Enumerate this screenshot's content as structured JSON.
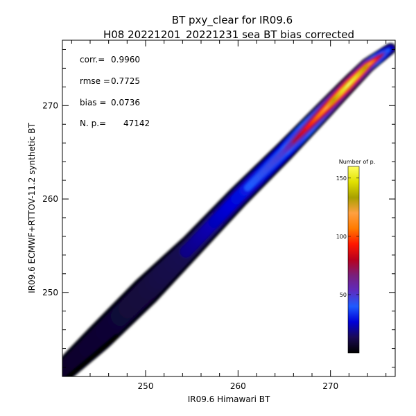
{
  "chart_data": {
    "type": "heatmap",
    "title": "BT pxy_clear for IR09.6",
    "subtitle": "H08 20221201_20221231 sea BT bias corrected",
    "xlabel": "IR09.6 Himawari BT",
    "ylabel": "IR09.6 ECMWF+RTTOV-11.2 synthetic BT",
    "xlim": [
      241,
      277
    ],
    "ylim": [
      241,
      277
    ],
    "x_ticks": [
      "250",
      "260",
      "270"
    ],
    "y_ticks": [
      "250",
      "260",
      "270"
    ],
    "stats": [
      {
        "label": "corr.=",
        "value": "0.9960"
      },
      {
        "label": "rmse =",
        "value": "0.7725"
      },
      {
        "label": "bias =",
        "value": "0.0736"
      },
      {
        "label": "N. p.=",
        "value": "47142"
      }
    ],
    "colorbar": {
      "title": "Number of p.",
      "range": [
        0,
        160
      ],
      "ticks": [
        "50",
        "100",
        "150"
      ],
      "tick_values": [
        50,
        100,
        150
      ],
      "colors": [
        "#000000",
        "#1a0a55",
        "#0000d8",
        "#1e5bff",
        "#5e2bbf",
        "#7a1f7a",
        "#b8001e",
        "#ff1800",
        "#ff7a00",
        "#ffa040",
        "#a8a000",
        "#e0e000",
        "#ffff60"
      ]
    },
    "density_ridge": {
      "x": [
        241,
        245,
        250,
        255,
        260,
        265,
        269,
        272,
        274,
        276.5
      ],
      "y": [
        241.5,
        245.2,
        250.1,
        255.0,
        260.2,
        265.1,
        269.2,
        272.3,
        274.3,
        276.1
      ],
      "half_width": [
        1.2,
        1.5,
        1.6,
        1.3,
        1.2,
        1.1,
        1.0,
        0.9,
        0.8,
        0.6
      ],
      "peak_count": [
        15,
        18,
        22,
        30,
        45,
        60,
        110,
        160,
        130,
        40
      ]
    }
  }
}
